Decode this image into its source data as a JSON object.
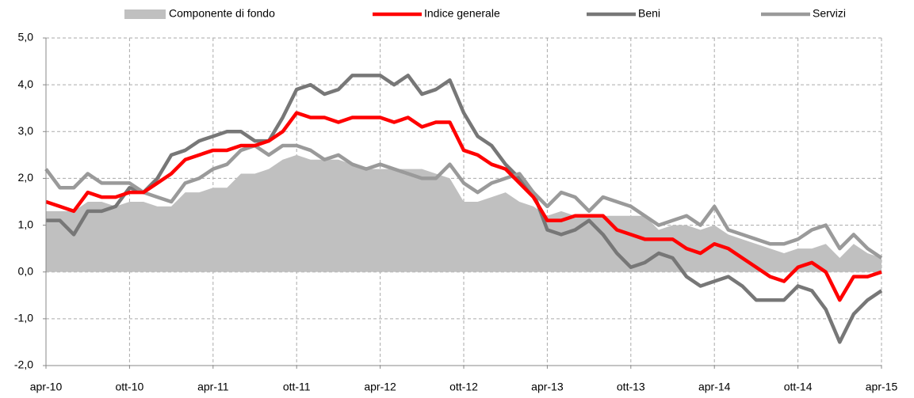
{
  "chart_data": {
    "type": "line",
    "categories": [
      "apr-10",
      null,
      null,
      null,
      null,
      null,
      "ott-10",
      null,
      null,
      null,
      null,
      null,
      "apr-11",
      null,
      null,
      null,
      null,
      null,
      "ott-11",
      null,
      null,
      null,
      null,
      null,
      "apr-12",
      null,
      null,
      null,
      null,
      null,
      "ott-12",
      null,
      null,
      null,
      null,
      null,
      "apr-13",
      null,
      null,
      null,
      null,
      null,
      "ott-13",
      null,
      null,
      null,
      null,
      null,
      "apr-14",
      null,
      null,
      null,
      null,
      null,
      "ott-14",
      null,
      null,
      null,
      null,
      null,
      "apr-15"
    ],
    "series": [
      {
        "name": "Componente di fondo",
        "kind": "area",
        "color": "#c0c0c0",
        "values": [
          1.3,
          1.3,
          1.3,
          1.5,
          1.5,
          1.4,
          1.5,
          1.5,
          1.4,
          1.4,
          1.7,
          1.7,
          1.8,
          1.8,
          2.1,
          2.1,
          2.2,
          2.4,
          2.5,
          2.4,
          2.4,
          2.4,
          2.3,
          2.2,
          2.2,
          2.2,
          2.2,
          2.2,
          2.1,
          2.0,
          1.5,
          1.5,
          1.6,
          1.7,
          1.5,
          1.4,
          1.2,
          1.3,
          1.2,
          1.2,
          1.2,
          1.2,
          1.2,
          1.2,
          0.9,
          1.0,
          1.0,
          0.9,
          1.0,
          0.8,
          0.7,
          0.6,
          0.5,
          0.4,
          0.5,
          0.5,
          0.6,
          0.3,
          0.6,
          0.4,
          0.3
        ]
      },
      {
        "name": "Indice generale",
        "kind": "line",
        "color": "#ff0000",
        "values": [
          1.5,
          1.4,
          1.3,
          1.7,
          1.6,
          1.6,
          1.7,
          1.7,
          1.9,
          2.1,
          2.4,
          2.5,
          2.6,
          2.6,
          2.7,
          2.7,
          2.8,
          3.0,
          3.4,
          3.3,
          3.3,
          3.2,
          3.3,
          3.3,
          3.3,
          3.2,
          3.3,
          3.1,
          3.2,
          3.2,
          2.6,
          2.5,
          2.3,
          2.2,
          1.9,
          1.6,
          1.1,
          1.1,
          1.2,
          1.2,
          1.2,
          0.9,
          0.8,
          0.7,
          0.7,
          0.7,
          0.5,
          0.4,
          0.6,
          0.5,
          0.3,
          0.1,
          -0.1,
          -0.2,
          0.1,
          0.2,
          0.0,
          -0.6,
          -0.1,
          -0.1,
          0.0
        ]
      },
      {
        "name": "Beni",
        "kind": "line",
        "color": "#777777",
        "values": [
          1.1,
          1.1,
          0.8,
          1.3,
          1.3,
          1.4,
          1.8,
          1.7,
          2.0,
          2.5,
          2.6,
          2.8,
          2.9,
          3.0,
          3.0,
          2.8,
          2.8,
          3.3,
          3.9,
          4.0,
          3.8,
          3.9,
          4.2,
          4.2,
          4.2,
          4.0,
          4.2,
          3.8,
          3.9,
          4.1,
          3.4,
          2.9,
          2.7,
          2.3,
          2.0,
          1.7,
          0.9,
          0.8,
          0.9,
          1.1,
          0.8,
          0.4,
          0.1,
          0.2,
          0.4,
          0.3,
          -0.1,
          -0.3,
          -0.2,
          -0.1,
          -0.3,
          -0.6,
          -0.6,
          -0.6,
          -0.3,
          -0.4,
          -0.8,
          -1.5,
          -0.9,
          -0.6,
          -0.4
        ]
      },
      {
        "name": "Servizi",
        "kind": "line",
        "color": "#9a9a9a",
        "values": [
          2.2,
          1.8,
          1.8,
          2.1,
          1.9,
          1.9,
          1.9,
          1.7,
          1.6,
          1.5,
          1.9,
          2.0,
          2.2,
          2.3,
          2.6,
          2.7,
          2.5,
          2.7,
          2.7,
          2.6,
          2.4,
          2.5,
          2.3,
          2.2,
          2.3,
          2.2,
          2.1,
          2.0,
          2.0,
          2.3,
          1.9,
          1.7,
          1.9,
          2.0,
          2.1,
          1.7,
          1.4,
          1.7,
          1.6,
          1.3,
          1.6,
          1.5,
          1.4,
          1.2,
          1.0,
          1.1,
          1.2,
          1.0,
          1.4,
          0.9,
          0.8,
          0.7,
          0.6,
          0.6,
          0.7,
          0.9,
          1.0,
          0.5,
          0.8,
          0.5,
          0.3
        ]
      }
    ],
    "ylim": [
      -2,
      5
    ],
    "yticks": [
      {
        "value": -2,
        "label": "-2,0"
      },
      {
        "value": -1,
        "label": "-1,0"
      },
      {
        "value": 0,
        "label": "0,0"
      },
      {
        "value": 1,
        "label": "1,0"
      },
      {
        "value": 2,
        "label": "2,0"
      },
      {
        "value": 3,
        "label": "3,0"
      },
      {
        "value": 4,
        "label": "4,0"
      },
      {
        "value": 5,
        "label": "5,0"
      }
    ],
    "grid": true,
    "legend": "top"
  }
}
